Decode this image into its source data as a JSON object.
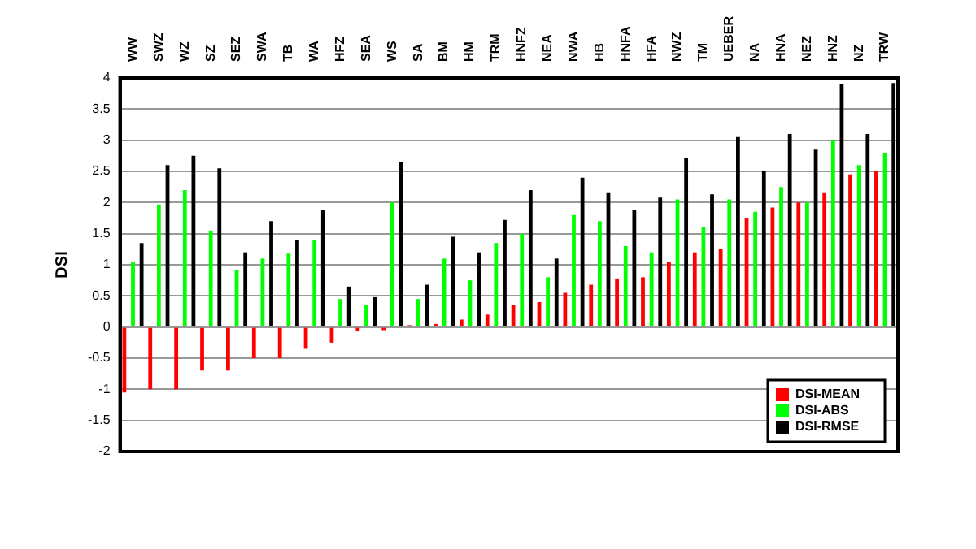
{
  "chart_data": {
    "type": "bar",
    "ylabel": "DSI",
    "categories": [
      "WW",
      "SWZ",
      "WZ",
      "SZ",
      "SEZ",
      "SWA",
      "TB",
      "WA",
      "HFZ",
      "SEA",
      "WS",
      "SA",
      "BM",
      "HM",
      "TRM",
      "HNFZ",
      "NEA",
      "NWA",
      "HB",
      "HNFA",
      "HFA",
      "NWZ",
      "TM",
      "UEBER",
      "NA",
      "HNA",
      "NEZ",
      "HNZ",
      "NZ",
      "TRW"
    ],
    "series": [
      {
        "name": "DSI-MEAN",
        "color": "#ff0000",
        "values": [
          -1.05,
          -1.0,
          -1.0,
          -0.7,
          -0.7,
          -0.5,
          -0.5,
          -0.35,
          -0.25,
          -0.07,
          -0.05,
          0.03,
          0.05,
          0.12,
          0.2,
          0.35,
          0.4,
          0.55,
          0.68,
          0.78,
          0.8,
          1.05,
          1.2,
          1.25,
          1.75,
          1.92,
          2.0,
          2.15,
          2.45,
          2.5
        ]
      },
      {
        "name": "DSI-ABS",
        "color": "#00ff00",
        "values": [
          1.05,
          1.97,
          2.2,
          1.55,
          0.92,
          1.1,
          1.18,
          1.4,
          0.45,
          0.35,
          2.0,
          0.45,
          1.1,
          0.75,
          1.35,
          1.5,
          0.8,
          1.8,
          1.7,
          1.3,
          1.2,
          2.05,
          1.6,
          2.05,
          1.85,
          2.25,
          2.0,
          3.0,
          2.6,
          2.8
        ]
      },
      {
        "name": "DSI-RMSE",
        "color": "#000000",
        "values": [
          1.35,
          2.6,
          2.75,
          2.55,
          1.2,
          1.7,
          1.4,
          1.88,
          0.65,
          0.48,
          2.65,
          0.68,
          1.45,
          1.2,
          1.72,
          2.2,
          1.1,
          2.4,
          2.15,
          1.88,
          2.08,
          2.72,
          2.13,
          3.05,
          2.5,
          3.1,
          2.85,
          3.9,
          3.1,
          3.92
        ]
      }
    ],
    "ylim": [
      -2,
      4
    ],
    "yticks": [
      -2,
      -1.5,
      -1,
      -0.5,
      0,
      0.5,
      1,
      1.5,
      2,
      2.5,
      3,
      3.5,
      4
    ],
    "grid": "y",
    "legend": "bottom right"
  }
}
